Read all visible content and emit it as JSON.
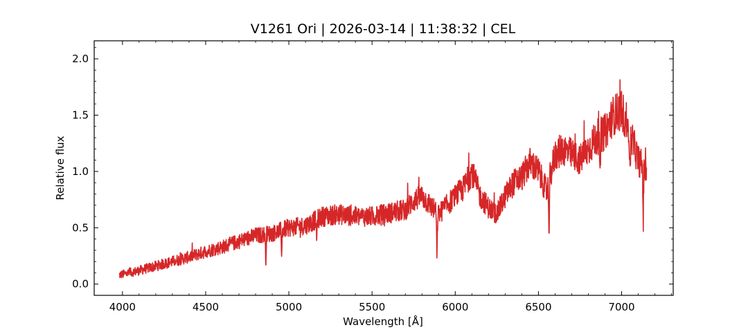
{
  "chart_data": {
    "type": "line",
    "title": "V1261 Ori | 2026-03-14 | 11:38:32 | CEL",
    "xlabel": "Wavelength [Å]",
    "ylabel": "Relative flux",
    "xlim": [
      3830,
      7310
    ],
    "ylim": [
      -0.1,
      2.16
    ],
    "xticks": [
      4000,
      4500,
      5000,
      5500,
      6000,
      6500,
      7000
    ],
    "yticks": [
      0.0,
      0.5,
      1.0,
      1.5,
      2.0
    ],
    "xtick_labels": [
      "4000",
      "4500",
      "5000",
      "5500",
      "6000",
      "6500",
      "7000"
    ],
    "ytick_labels": [
      "0.0",
      "0.5",
      "1.0",
      "1.5",
      "2.0"
    ],
    "grid": false,
    "series": [
      {
        "color": "#d62728",
        "continuum": {
          "x": [
            3980,
            4100,
            4200,
            4300,
            4400,
            4500,
            4600,
            4700,
            4800,
            4900,
            5000,
            5100,
            5200,
            5300,
            5400,
            5500,
            5600,
            5700,
            5750,
            5800,
            5850,
            5900,
            6000,
            6050,
            6100,
            6150,
            6200,
            6250,
            6300,
            6350,
            6400,
            6450,
            6500,
            6550,
            6600,
            6650,
            6700,
            6750,
            6800,
            6850,
            6900,
            6950,
            7000,
            7050,
            7100,
            7150
          ],
          "y": [
            0.08,
            0.12,
            0.16,
            0.2,
            0.24,
            0.29,
            0.33,
            0.38,
            0.43,
            0.45,
            0.5,
            0.52,
            0.6,
            0.62,
            0.6,
            0.6,
            0.63,
            0.66,
            0.74,
            0.78,
            0.7,
            0.62,
            0.78,
            0.85,
            1.0,
            0.78,
            0.68,
            0.62,
            0.78,
            0.9,
            0.95,
            1.08,
            1.0,
            0.82,
            1.15,
            1.2,
            1.15,
            1.1,
            1.2,
            1.3,
            1.35,
            1.5,
            1.55,
            1.35,
            1.1,
            1.0
          ]
        },
        "absorption_lines": [
          {
            "x": 4861,
            "depth": 0.25
          },
          {
            "x": 4957,
            "depth": 0.2
          },
          {
            "x": 5167,
            "depth": 0.2
          },
          {
            "x": 5890,
            "depth": 0.45
          },
          {
            "x": 6563,
            "depth": 0.55
          },
          {
            "x": 6870,
            "depth": 0.5
          },
          {
            "x": 7050,
            "depth": 0.5
          },
          {
            "x": 7130,
            "depth": 0.45
          }
        ]
      }
    ]
  }
}
